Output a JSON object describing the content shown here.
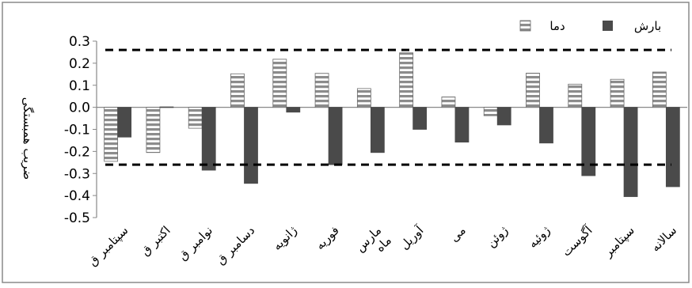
{
  "chart_data": {
    "type": "bar",
    "ylabel": "ضریب همبستگی",
    "ylim": [
      -0.5,
      0.3
    ],
    "yticks": [
      0.3,
      0.2,
      0.1,
      0.0,
      -0.1,
      -0.2,
      -0.3,
      -0.4,
      -0.5
    ],
    "ytick_labels": [
      "0.3",
      "0.2",
      "0.1",
      "0.0",
      "-0.1",
      "-0.2",
      "-0.3",
      "-0.4",
      "-0.5"
    ],
    "grid": false,
    "legend_position": "top-right",
    "categories": [
      "سپتامبر ق",
      "اکتبر ق",
      "نوامبر ق",
      "دسامبر ق",
      "ژانویه",
      "فوریه",
      "مارس ماه",
      "آوریل",
      "می",
      "ژوئن",
      "ژوئیه",
      "آگوست",
      "سپتامبر",
      "سالانه"
    ],
    "series": [
      {
        "name": "دما",
        "pattern": "horizontal-stripes",
        "color": "#8c8c8c",
        "values": [
          -0.245,
          -0.205,
          -0.095,
          0.152,
          0.218,
          0.154,
          0.085,
          0.247,
          0.047,
          -0.038,
          0.155,
          0.105,
          0.127,
          0.16
        ]
      },
      {
        "name": "بارش",
        "pattern": "solid",
        "color": "#4a4a4a",
        "values": [
          -0.135,
          0.002,
          -0.285,
          -0.345,
          -0.022,
          -0.26,
          -0.205,
          -0.1,
          -0.158,
          -0.08,
          -0.162,
          -0.31,
          -0.405,
          -0.36
        ]
      }
    ],
    "significance_lines": [
      0.26,
      -0.26
    ]
  }
}
